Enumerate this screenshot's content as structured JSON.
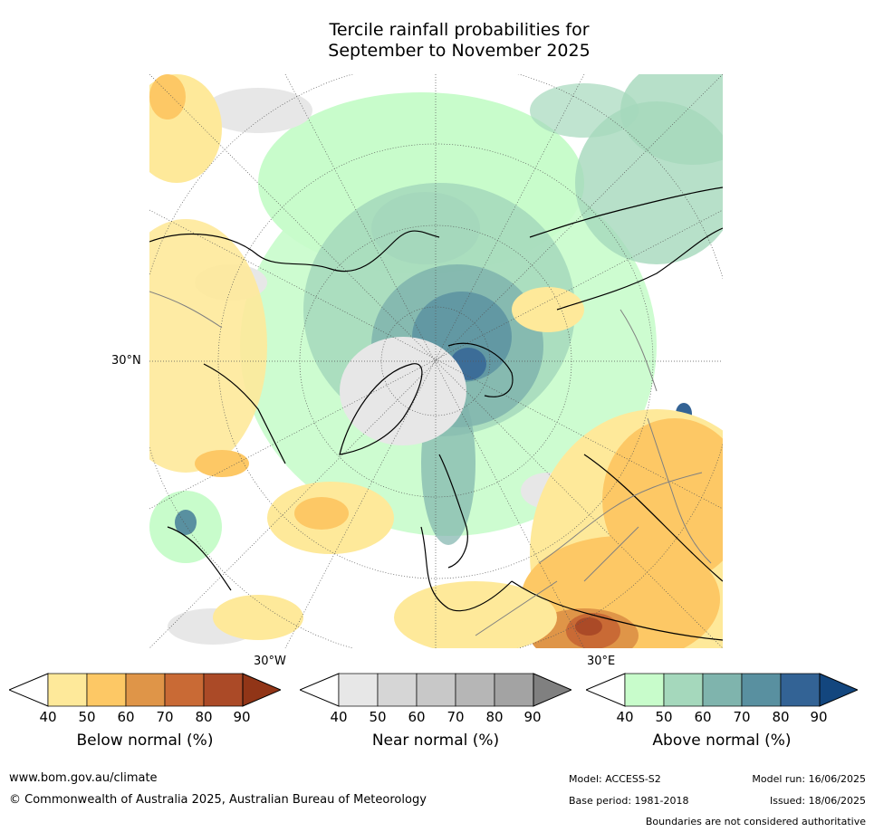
{
  "title_line1": "Tercile rainfall probabilities for",
  "title_line2": "September to November 2025",
  "lat_label": "30°N",
  "lon_labels": {
    "west": "30°W",
    "east": "30°E"
  },
  "colorbars": [
    {
      "caption": "Below normal (%)",
      "ticks": [
        "40",
        "50",
        "60",
        "70",
        "80",
        "90"
      ],
      "colors": [
        "#ffffff",
        "#fee99a",
        "#fdc865",
        "#df9548",
        "#c96a35",
        "#ab4a27",
        "#913517"
      ]
    },
    {
      "caption": "Near normal (%)",
      "ticks": [
        "40",
        "50",
        "60",
        "70",
        "80",
        "90"
      ],
      "colors": [
        "#ffffff",
        "#e7e7e7",
        "#d6d6d6",
        "#c8c8c8",
        "#b6b6b6",
        "#a3a3a3",
        "#808080"
      ]
    },
    {
      "caption": "Above normal (%)",
      "ticks": [
        "40",
        "50",
        "60",
        "70",
        "80",
        "90"
      ],
      "colors": [
        "#ffffff",
        "#c8fccb",
        "#a5d8bc",
        "#7fb4ad",
        "#5990a0",
        "#336395",
        "#13467e"
      ]
    }
  ],
  "footer": {
    "url": "www.bom.gov.au/climate",
    "copyright": "© Commonwealth of Australia 2025, Australian Bureau of Meteorology",
    "model": "Model: ACCESS-S2",
    "base_period": "Base period: 1981-2018",
    "model_run": "Model run: 16/06/2025",
    "issued": "Issued: 18/06/2025",
    "disclaimer": "Boundaries are not considered authoritative"
  }
}
